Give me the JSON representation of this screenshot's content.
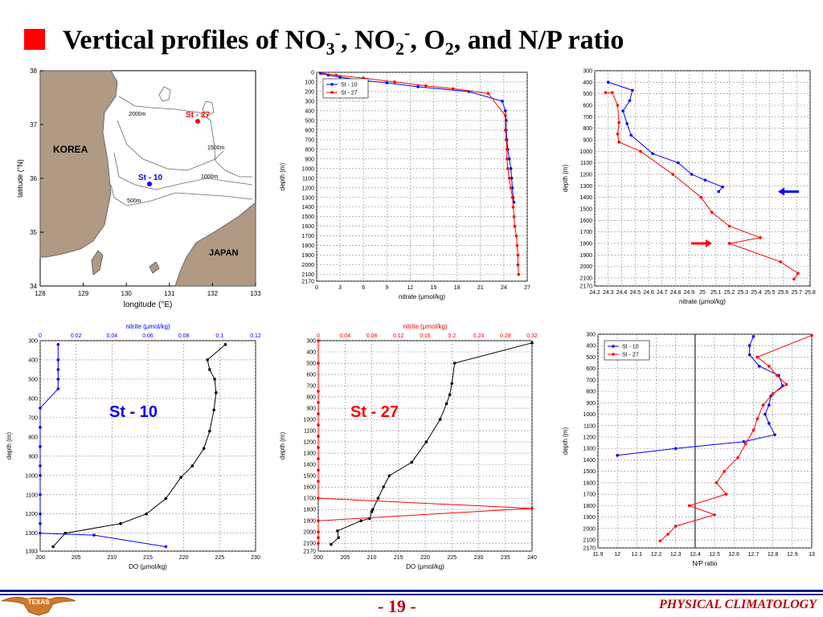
{
  "title": {
    "part1": "Vertical profiles of NO",
    "sub1": "3",
    "sup1": "-",
    "part2": ", NO",
    "sub2": "2",
    "sup2": "-",
    "part3": ", O",
    "sub3": "2",
    "part4": ", and N/P ratio"
  },
  "colors": {
    "blue": "#0000ff",
    "red": "#ff0000",
    "black": "#000000",
    "land": "#b09a84",
    "accent": "#ff0000",
    "footer": "#c00000"
  },
  "footer": {
    "page": "- 19 -",
    "course": "PHYSICAL CLIMATOLOGY",
    "logo_text": "TEXAS"
  },
  "map": {
    "xlabel": "longitude (°E)",
    "ylabel": "latitude (°N)",
    "xticks": [
      "128",
      "129",
      "130",
      "131",
      "132",
      "133"
    ],
    "yticks": [
      "34",
      "35",
      "36",
      "37",
      "38"
    ],
    "labels": {
      "korea": "KOREA",
      "japan": "JAPAN",
      "st10": "St - 10",
      "st27": "St - 27",
      "c2000": "2000m",
      "c1500": "1500m",
      "c1000": "1000m",
      "c500": "500m"
    }
  },
  "chart_data": [
    {
      "type": "line",
      "id": "nitrate-both",
      "xlabel": "nitrate (μmol/kg)",
      "ylabel": "depth (m)",
      "xlim": [
        0,
        27
      ],
      "ylim": [
        0,
        2170
      ],
      "xticks": [
        "0",
        "3",
        "6",
        "9",
        "12",
        "15",
        "18",
        "21",
        "24",
        "27"
      ],
      "yticks": [
        "0",
        "100",
        "200",
        "300",
        "400",
        "500",
        "600",
        "700",
        "800",
        "900",
        "1000",
        "1100",
        "1200",
        "1300",
        "1400",
        "1500",
        "1600",
        "1700",
        "1800",
        "1900",
        "2000",
        "2100",
        "2170"
      ],
      "legend": "top-left",
      "series": [
        {
          "name": "St - 10",
          "color": "blue",
          "x": [
            0.5,
            1.5,
            3,
            5.5,
            9,
            13,
            19.5,
            23.8,
            24.2,
            24.3,
            24.3,
            24.4,
            24.5,
            24.7,
            24.9,
            25.0,
            25.1,
            25.2,
            25.3
          ],
          "y": [
            10,
            30,
            50,
            80,
            110,
            150,
            200,
            300,
            400,
            500,
            600,
            700,
            800,
            900,
            1000,
            1100,
            1200,
            1300,
            1350
          ]
        },
        {
          "name": "St - 27",
          "color": "red",
          "x": [
            0.8,
            2.5,
            6,
            10,
            14,
            17.5,
            22,
            24.2,
            24.2,
            24.3,
            24.4,
            24.4,
            24.5,
            24.7,
            24.9,
            25.1,
            25.2,
            25.3,
            25.4,
            25.6,
            25.7,
            25.8,
            25.8,
            25.9
          ],
          "y": [
            10,
            30,
            60,
            100,
            140,
            170,
            220,
            450,
            600,
            700,
            800,
            900,
            1000,
            1100,
            1200,
            1300,
            1400,
            1500,
            1600,
            1700,
            1800,
            1900,
            2000,
            2100
          ]
        }
      ]
    },
    {
      "type": "line",
      "id": "nitrate-zoom",
      "xlabel": "nitrate (μmol/kg)",
      "ylabel": "depth (m)",
      "xlim": [
        24.2,
        25.8
      ],
      "ylim": [
        300,
        2170
      ],
      "xticks": [
        "24.2",
        "24.3",
        "24.4",
        "24.5",
        "24.6",
        "24.7",
        "24.8",
        "24.9",
        "25",
        "25.1",
        "25.2",
        "25.3",
        "25.4",
        "25.5",
        "25.6",
        "25.7",
        "25.8"
      ],
      "yticks": [
        "300",
        "400",
        "500",
        "600",
        "700",
        "800",
        "900",
        "1000",
        "1100",
        "1200",
        "1300",
        "1400",
        "1500",
        "1600",
        "1700",
        "1800",
        "1900",
        "2000",
        "2100",
        "2170"
      ],
      "series": [
        {
          "name": "St - 10",
          "color": "blue",
          "x": [
            24.3,
            24.48,
            24.46,
            24.41,
            24.44,
            24.47,
            24.63,
            24.82,
            24.92,
            25.02,
            25.15,
            25.12
          ],
          "y": [
            400,
            470,
            560,
            650,
            760,
            860,
            1020,
            1100,
            1200,
            1250,
            1310,
            1350
          ]
        },
        {
          "name": "St - 27",
          "color": "red",
          "x": [
            24.28,
            24.33,
            24.37,
            24.38,
            24.37,
            24.38,
            24.54,
            24.78,
            24.99,
            25.07,
            25.2,
            25.43,
            25.2,
            25.58,
            25.71,
            25.68
          ],
          "y": [
            490,
            490,
            600,
            750,
            850,
            920,
            1000,
            1200,
            1400,
            1530,
            1650,
            1750,
            1800,
            1960,
            2060,
            2110
          ]
        }
      ],
      "arrows": [
        {
          "color": "blue",
          "depth": 1350,
          "direction": "left"
        },
        {
          "color": "red",
          "depth": 1800,
          "direction": "right"
        }
      ]
    },
    {
      "type": "line",
      "id": "do-st10",
      "title": "St - 10",
      "xlabel": "DO (μmol/kg)",
      "ylabel": "depth (m)",
      "x2label": "nitrite (μmol/kg)",
      "xlim": [
        200,
        230
      ],
      "x2lim": [
        0,
        0.12
      ],
      "ylim": [
        300,
        1393
      ],
      "xticks": [
        "200",
        "205",
        "210",
        "215",
        "220",
        "225",
        "230"
      ],
      "x2ticks": [
        "0",
        "0.02",
        "0.04",
        "0.06",
        "0.08",
        "0.1",
        "0.12"
      ],
      "yticks": [
        "300",
        "400",
        "500",
        "600",
        "700",
        "800",
        "900",
        "1000",
        "1100",
        "1200",
        "1300",
        "1393"
      ],
      "series": [
        {
          "name": "DO",
          "color": "black",
          "axis": "bottom",
          "x": [
            225.8,
            223.3,
            223.6,
            224.3,
            224.5,
            224.2,
            223.6,
            222.8,
            221.2,
            219.6,
            217.5,
            214.8,
            211.2,
            203.5,
            201.8
          ],
          "y": [
            320,
            400,
            450,
            500,
            570,
            660,
            770,
            860,
            950,
            1010,
            1120,
            1200,
            1250,
            1300,
            1370
          ]
        },
        {
          "name": "nitrite",
          "color": "blue",
          "axis": "top",
          "x": [
            0.01,
            0.01,
            0.01,
            0.01,
            0.01,
            0.0,
            0.0,
            0.0,
            0.0,
            0.0,
            0.0,
            0.0,
            0.0,
            0.0,
            0.03,
            0.07
          ],
          "y": [
            320,
            400,
            450,
            500,
            550,
            650,
            750,
            850,
            950,
            1000,
            1100,
            1200,
            1250,
            1300,
            1310,
            1370
          ]
        }
      ]
    },
    {
      "type": "line",
      "id": "do-st27",
      "title": "St - 27",
      "xlabel": "DO (μmol/kg)",
      "ylabel": "depth (m)",
      "x2label": "nitrite (μmol/kg)",
      "xlim": [
        200,
        240
      ],
      "x2lim": [
        0,
        0.32
      ],
      "ylim": [
        300,
        2170
      ],
      "xticks": [
        "200",
        "205",
        "210",
        "215",
        "220",
        "225",
        "230",
        "235",
        "240"
      ],
      "x2ticks": [
        "0",
        "0.04",
        "0.08",
        "0.12",
        "0.16",
        "0.2",
        "0.24",
        "0.28",
        "0.32"
      ],
      "yticks": [
        "300",
        "400",
        "500",
        "600",
        "700",
        "800",
        "900",
        "1000",
        "1100",
        "1200",
        "1300",
        "1400",
        "1500",
        "1600",
        "1700",
        "1800",
        "1900",
        "2000",
        "2100",
        "2170"
      ],
      "series": [
        {
          "name": "DO",
          "color": "black",
          "axis": "bottom",
          "x": [
            240,
            225.5,
            225,
            224.6,
            224,
            222.8,
            220.2,
            217.5,
            213.3,
            212.2,
            211.2,
            210.2,
            210,
            209.6,
            208,
            203.6,
            203.8,
            202.4
          ],
          "y": [
            320,
            500,
            680,
            780,
            860,
            1000,
            1200,
            1380,
            1500,
            1600,
            1700,
            1800,
            1820,
            1880,
            1900,
            1990,
            2050,
            2110
          ]
        },
        {
          "name": "nitrite",
          "color": "red",
          "axis": "top",
          "x": [
            0.0,
            0.0,
            0.0,
            0.0,
            0.0,
            0.0,
            0.0,
            0.0,
            0.0,
            0.0,
            0.0,
            0.0,
            0.32,
            0.0,
            0.0,
            0.0,
            0.0
          ],
          "y": [
            300,
            500,
            750,
            850,
            950,
            1050,
            1150,
            1250,
            1350,
            1450,
            1550,
            1700,
            1790,
            1900,
            2000,
            2050,
            2100
          ]
        }
      ]
    },
    {
      "type": "line",
      "id": "np-ratio",
      "xlabel": "N/P ratio",
      "ylabel": "depth (m)",
      "xlim": [
        11.9,
        13
      ],
      "ylim": [
        300,
        2170
      ],
      "xticks": [
        "11.9",
        "12",
        "12.1",
        "12.2",
        "12.3",
        "12.4",
        "12.5",
        "12.6",
        "12.7",
        "12.8",
        "12.9",
        "13"
      ],
      "yticks": [
        "300",
        "400",
        "500",
        "600",
        "700",
        "800",
        "900",
        "1000",
        "1100",
        "1200",
        "1300",
        "1400",
        "1500",
        "1600",
        "1700",
        "1800",
        "1900",
        "2000",
        "2100",
        "2170"
      ],
      "legend": "top-left",
      "vline": 12.4,
      "series": [
        {
          "name": "St - 10",
          "color": "blue",
          "x": [
            12.7,
            12.68,
            12.68,
            12.73,
            12.83,
            12.85,
            12.79,
            12.78,
            12.76,
            12.78,
            12.81,
            12.65,
            12.3,
            12.0
          ],
          "y": [
            320,
            400,
            480,
            580,
            660,
            750,
            840,
            920,
            1000,
            1080,
            1180,
            1240,
            1300,
            1360
          ]
        },
        {
          "name": "St - 27",
          "color": "red",
          "x": [
            13.0,
            12.72,
            12.78,
            12.82,
            12.87,
            12.8,
            12.75,
            12.72,
            12.7,
            12.66,
            12.62,
            12.55,
            12.51,
            12.56,
            12.37,
            12.5,
            12.3,
            12.26,
            12.22
          ],
          "y": [
            310,
            500,
            580,
            660,
            740,
            820,
            920,
            1040,
            1140,
            1260,
            1380,
            1500,
            1600,
            1700,
            1800,
            1880,
            1980,
            2050,
            2110
          ]
        }
      ]
    }
  ]
}
